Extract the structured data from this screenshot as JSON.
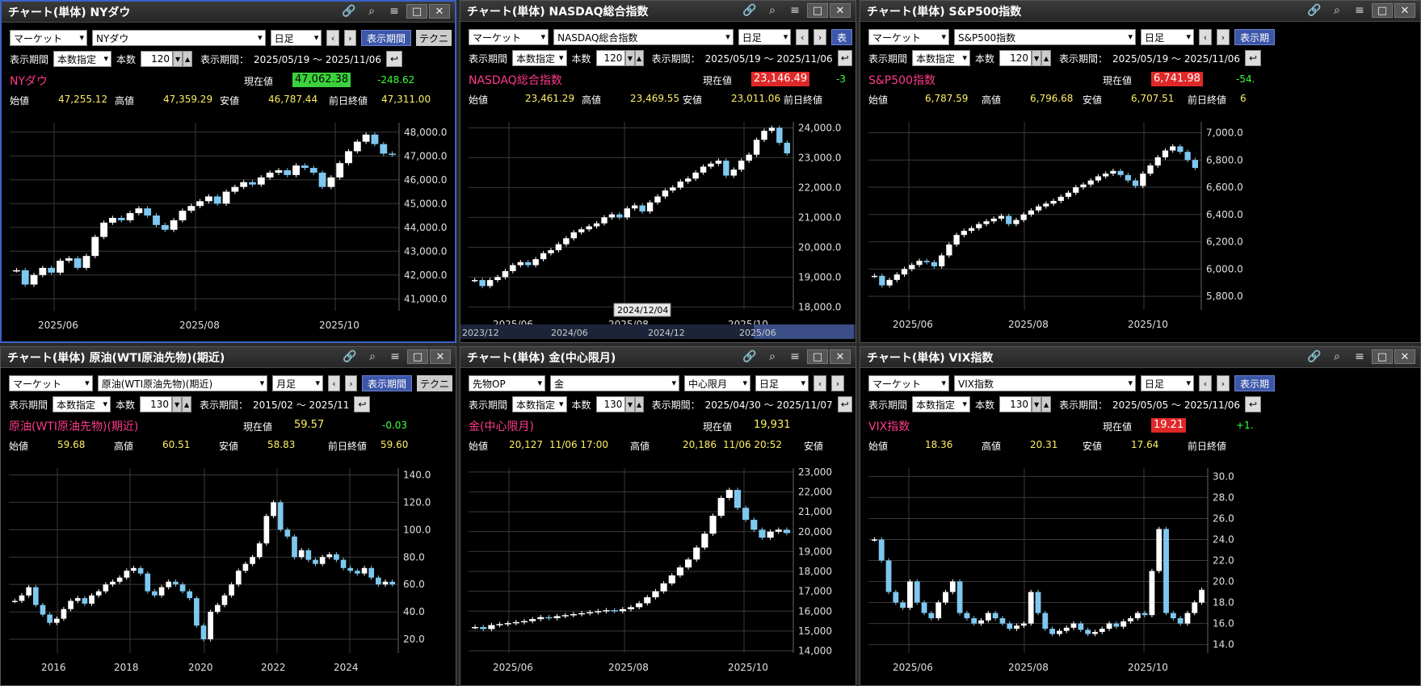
{
  "panels": [
    {
      "id": "nydow",
      "active": true,
      "title": "チャート(単体) NYダウ",
      "market": "マーケット",
      "symbol": "NYダウ",
      "interval": "日足",
      "period_btn": "表示期間",
      "tech_btn": "テクニ",
      "period_label": "表示期間",
      "period_mode": "本数指定",
      "count_label": "本数",
      "count": "120",
      "range_label": "表示期間：",
      "range": "2025/05/19 ～ 2025/11/06",
      "name": "NYダウ",
      "cur_label": "現在値",
      "cur_value": "47,062.38",
      "cur_style": "up",
      "change": "-248.62",
      "open_label": "始値",
      "open": "47,255.12",
      "high_label": "高値",
      "high": "47,359.29",
      "low_label": "安値",
      "low": "46,787.44",
      "prev_label": "前日終値",
      "prev": "47,311.00",
      "chart": {
        "y_ticks": [
          "48,000.0",
          "47,000.0",
          "46,000.0",
          "45,000.0",
          "44,000.0",
          "43,000.0",
          "42,000.0",
          "41,000.0"
        ],
        "ylim": [
          40500,
          48400
        ],
        "x_ticks": [
          "2025/06",
          "2025/08",
          "2025/10"
        ],
        "closes": [
          42200,
          41600,
          42000,
          42300,
          42100,
          42600,
          42700,
          42300,
          42800,
          43600,
          44200,
          44400,
          44300,
          44600,
          44800,
          44500,
          44100,
          43900,
          44300,
          44700,
          44900,
          45100,
          45300,
          45000,
          45500,
          45700,
          45900,
          45800,
          46100,
          46300,
          46400,
          46200,
          46600,
          46500,
          46300,
          45700,
          46100,
          46700,
          47200,
          47600,
          47900,
          47500,
          47100,
          47060
        ]
      }
    },
    {
      "id": "nasdaq",
      "active": false,
      "title": "チャート(単体) NASDAQ総合指数",
      "market": "マーケット",
      "symbol": "NASDAQ総合指数",
      "interval": "日足",
      "period_btn": "表",
      "tech_btn": "",
      "period_label": "表示期間",
      "period_mode": "本数指定",
      "count_label": "本数",
      "count": "120",
      "range_label": "表示期間：",
      "range": "2025/05/19 ～ 2025/11/06",
      "name": "NASDAQ総合指数",
      "cur_label": "現在値",
      "cur_value": "23,146.49",
      "cur_style": "down",
      "change": "-3",
      "open_label": "始値",
      "open": "23,461.29",
      "high_label": "高値",
      "high": "23,469.55",
      "low_label": "安値",
      "low": "23,011.06",
      "prev_label": "前日終値",
      "prev": "",
      "chart": {
        "y_ticks": [
          "24,000.0",
          "23,000.0",
          "22,000.0",
          "21,000.0",
          "20,000.0",
          "19,000.0",
          "18,000.0"
        ],
        "ylim": [
          17900,
          24200
        ],
        "x_ticks": [
          "2025/06",
          "2025/08",
          "2025/10"
        ],
        "closes": [
          18900,
          18700,
          18900,
          19000,
          19200,
          19400,
          19500,
          19400,
          19600,
          19800,
          19900,
          20100,
          20300,
          20500,
          20600,
          20700,
          20800,
          21000,
          21100,
          21000,
          21300,
          21400,
          21200,
          21500,
          21700,
          21900,
          22000,
          22200,
          22300,
          22500,
          22700,
          22800,
          22900,
          22400,
          22600,
          22900,
          23100,
          23600,
          23900,
          24000,
          23500,
          23146
        ]
      },
      "nav": {
        "ticks": [
          "2023/12",
          "2024/06",
          "2024/12",
          "2025/06"
        ],
        "tooltip": "2024/12/04"
      }
    },
    {
      "id": "sp500",
      "active": false,
      "title": "チャート(単体) S&P500指数",
      "market": "マーケット",
      "symbol": "S&P500指数",
      "interval": "日足",
      "period_btn": "表示期",
      "tech_btn": "",
      "period_label": "表示期間",
      "period_mode": "本数指定",
      "count_label": "本数",
      "count": "120",
      "range_label": "表示期間：",
      "range": "2025/05/19 ～ 2025/11/06",
      "name": "S&P500指数",
      "cur_label": "現在値",
      "cur_value": "6,741.98",
      "cur_style": "down",
      "change": "-54.",
      "open_label": "始値",
      "open": "6,787.59",
      "high_label": "高値",
      "high": "6,796.68",
      "low_label": "安値",
      "low": "6,707.51",
      "prev_label": "前日終値",
      "prev": "6",
      "chart": {
        "y_ticks": [
          "7,000.0",
          "6,800.0",
          "6,600.0",
          "6,400.0",
          "6,200.0",
          "6,000.0",
          "5,800.0"
        ],
        "ylim": [
          5700,
          7080
        ],
        "x_ticks": [
          "2025/06",
          "2025/08",
          "2025/10"
        ],
        "closes": [
          5950,
          5880,
          5920,
          5960,
          6000,
          6030,
          6060,
          6050,
          6020,
          6100,
          6180,
          6250,
          6280,
          6300,
          6330,
          6350,
          6370,
          6390,
          6330,
          6360,
          6400,
          6430,
          6460,
          6480,
          6500,
          6530,
          6560,
          6600,
          6620,
          6650,
          6680,
          6700,
          6720,
          6690,
          6650,
          6610,
          6700,
          6760,
          6820,
          6870,
          6900,
          6860,
          6800,
          6742
        ]
      }
    },
    {
      "id": "wti",
      "active": false,
      "title": "チャート(単体) 原油(WTI原油先物)(期近)",
      "market": "マーケット",
      "symbol": "原油(WTI原油先物)(期近)",
      "interval": "月足",
      "period_btn": "表示期間",
      "tech_btn": "テクニ",
      "period_label": "表示期間",
      "period_mode": "本数指定",
      "count_label": "本数",
      "count": "130",
      "range_label": "表示期間：",
      "range": "2015/02 ～ 2025/11",
      "name": "原油(WTI原油先物)(期近)",
      "cur_label": "現在値",
      "cur_value": "59.57",
      "cur_style": "plain",
      "change": "-0.03",
      "open_label": "始値",
      "open": "59.68",
      "high_label": "高値",
      "high": "60.51",
      "low_label": "安値",
      "low": "58.83",
      "prev_label": "前日終値",
      "prev": "59.60",
      "chart": {
        "y_ticks": [
          "140.0",
          "120.0",
          "100.0",
          "80.0",
          "60.0",
          "40.0",
          "20.0"
        ],
        "ylim": [
          10,
          145
        ],
        "x_ticks": [
          "2016",
          "2018",
          "2020",
          "2022",
          "2024"
        ],
        "closes": [
          48,
          52,
          58,
          45,
          38,
          32,
          35,
          42,
          48,
          50,
          46,
          52,
          55,
          60,
          62,
          65,
          70,
          72,
          68,
          55,
          52,
          58,
          62,
          60,
          55,
          50,
          30,
          20,
          40,
          45,
          52,
          60,
          70,
          75,
          80,
          90,
          110,
          120,
          100,
          95,
          80,
          85,
          78,
          75,
          80,
          82,
          78,
          72,
          70,
          68,
          72,
          65,
          60,
          62,
          60
        ]
      }
    },
    {
      "id": "gold",
      "active": false,
      "title": "チャート(単体) 金(中心限月)",
      "market": "先物OP",
      "symbol": "金",
      "contract": "中心限月",
      "interval": "日足",
      "period_btn": "",
      "tech_btn": "",
      "period_label": "表示期間",
      "period_mode": "本数指定",
      "count_label": "本数",
      "count": "130",
      "range_label": "表示期間：",
      "range": "2025/04/30 ～ 2025/11/07",
      "name": "金(中心限月)",
      "cur_label": "現在値",
      "cur_value": "19,931",
      "cur_style": "plain",
      "change": "",
      "open_label": "始値",
      "open": "20,127",
      "open_time": "11/06 17:00",
      "high_label": "高値",
      "high": "20,186",
      "high_time": "11/06 20:52",
      "low_label": "安値",
      "low": "",
      "prev_label": "",
      "prev": "",
      "chart": {
        "y_ticks": [
          "23,000",
          "22,000",
          "21,000",
          "20,000",
          "19,000",
          "18,000",
          "17,000",
          "16,000",
          "15,000",
          "14,000"
        ],
        "ylim": [
          13900,
          23200
        ],
        "x_ticks": [
          "2025/06",
          "2025/08",
          "2025/10"
        ],
        "closes": [
          15200,
          15100,
          15300,
          15350,
          15400,
          15450,
          15500,
          15600,
          15700,
          15650,
          15750,
          15800,
          15850,
          15900,
          15950,
          16000,
          16050,
          16000,
          16100,
          16200,
          16400,
          16700,
          17000,
          17400,
          17800,
          18200,
          18600,
          19200,
          19900,
          20800,
          21700,
          22100,
          21200,
          20600,
          20100,
          19700,
          20000,
          20100,
          19931
        ]
      }
    },
    {
      "id": "vix",
      "active": false,
      "title": "チャート(単体) VIX指数",
      "market": "マーケット",
      "symbol": "VIX指数",
      "interval": "日足",
      "period_btn": "表示期",
      "tech_btn": "",
      "period_label": "表示期間",
      "period_mode": "本数指定",
      "count_label": "本数",
      "count": "130",
      "range_label": "表示期間：",
      "range": "2025/05/05 ～ 2025/11/06",
      "name": "VIX指数",
      "cur_label": "現在値",
      "cur_value": "19.21",
      "cur_style": "down",
      "change": "+1.",
      "open_label": "始値",
      "open": "18.36",
      "high_label": "高値",
      "high": "20.31",
      "low_label": "安値",
      "low": "17.64",
      "prev_label": "前日終値",
      "prev": "",
      "chart": {
        "y_ticks": [
          "30.0",
          "28.0",
          "26.0",
          "24.0",
          "22.0",
          "20.0",
          "18.0",
          "16.0",
          "14.0"
        ],
        "ylim": [
          13.2,
          30.8
        ],
        "x_ticks": [
          "2025/06",
          "2025/08",
          "2025/10"
        ],
        "closes": [
          24,
          22,
          19,
          18,
          17.5,
          20,
          18,
          17,
          16.5,
          18,
          19,
          20,
          17,
          16.5,
          16,
          16.3,
          17,
          16.5,
          16,
          15.5,
          15.8,
          16,
          19,
          17,
          15.5,
          15,
          15.3,
          15.6,
          16,
          15.4,
          15,
          15.2,
          15.5,
          16,
          15.7,
          16.2,
          16.5,
          17,
          16.8,
          21,
          25,
          17,
          16.5,
          16,
          17,
          18,
          19.21
        ]
      }
    }
  ]
}
